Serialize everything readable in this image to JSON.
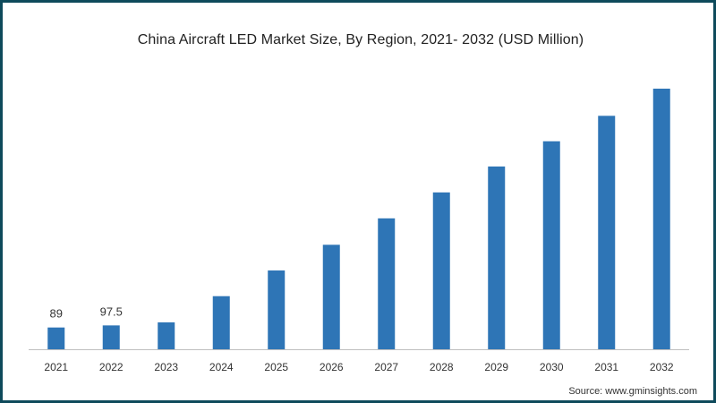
{
  "chart_data": {
    "type": "bar",
    "title": "China Aircraft LED Market Size, By Region, 2021- 2032 (USD Million)",
    "xlabel": "",
    "ylabel": "",
    "categories": [
      "2021",
      "2022",
      "2023",
      "2024",
      "2025",
      "2026",
      "2027",
      "2028",
      "2029",
      "2030",
      "2031",
      "2032"
    ],
    "values": [
      89,
      97.5,
      110,
      217,
      322,
      427,
      535,
      641,
      747,
      850,
      954,
      1065
    ],
    "data_labels": [
      "89",
      "97.5",
      "",
      "",
      "",
      "",
      "",
      "",
      "",
      "",
      "",
      ""
    ],
    "ylim": [
      0,
      1065
    ],
    "grid": false,
    "legend": "none",
    "bar_color": "#2e75b6"
  },
  "source": "Source: www.gminsights.com",
  "colors": {
    "frame": "#0e4a5b",
    "bar": "#2e75b6"
  }
}
